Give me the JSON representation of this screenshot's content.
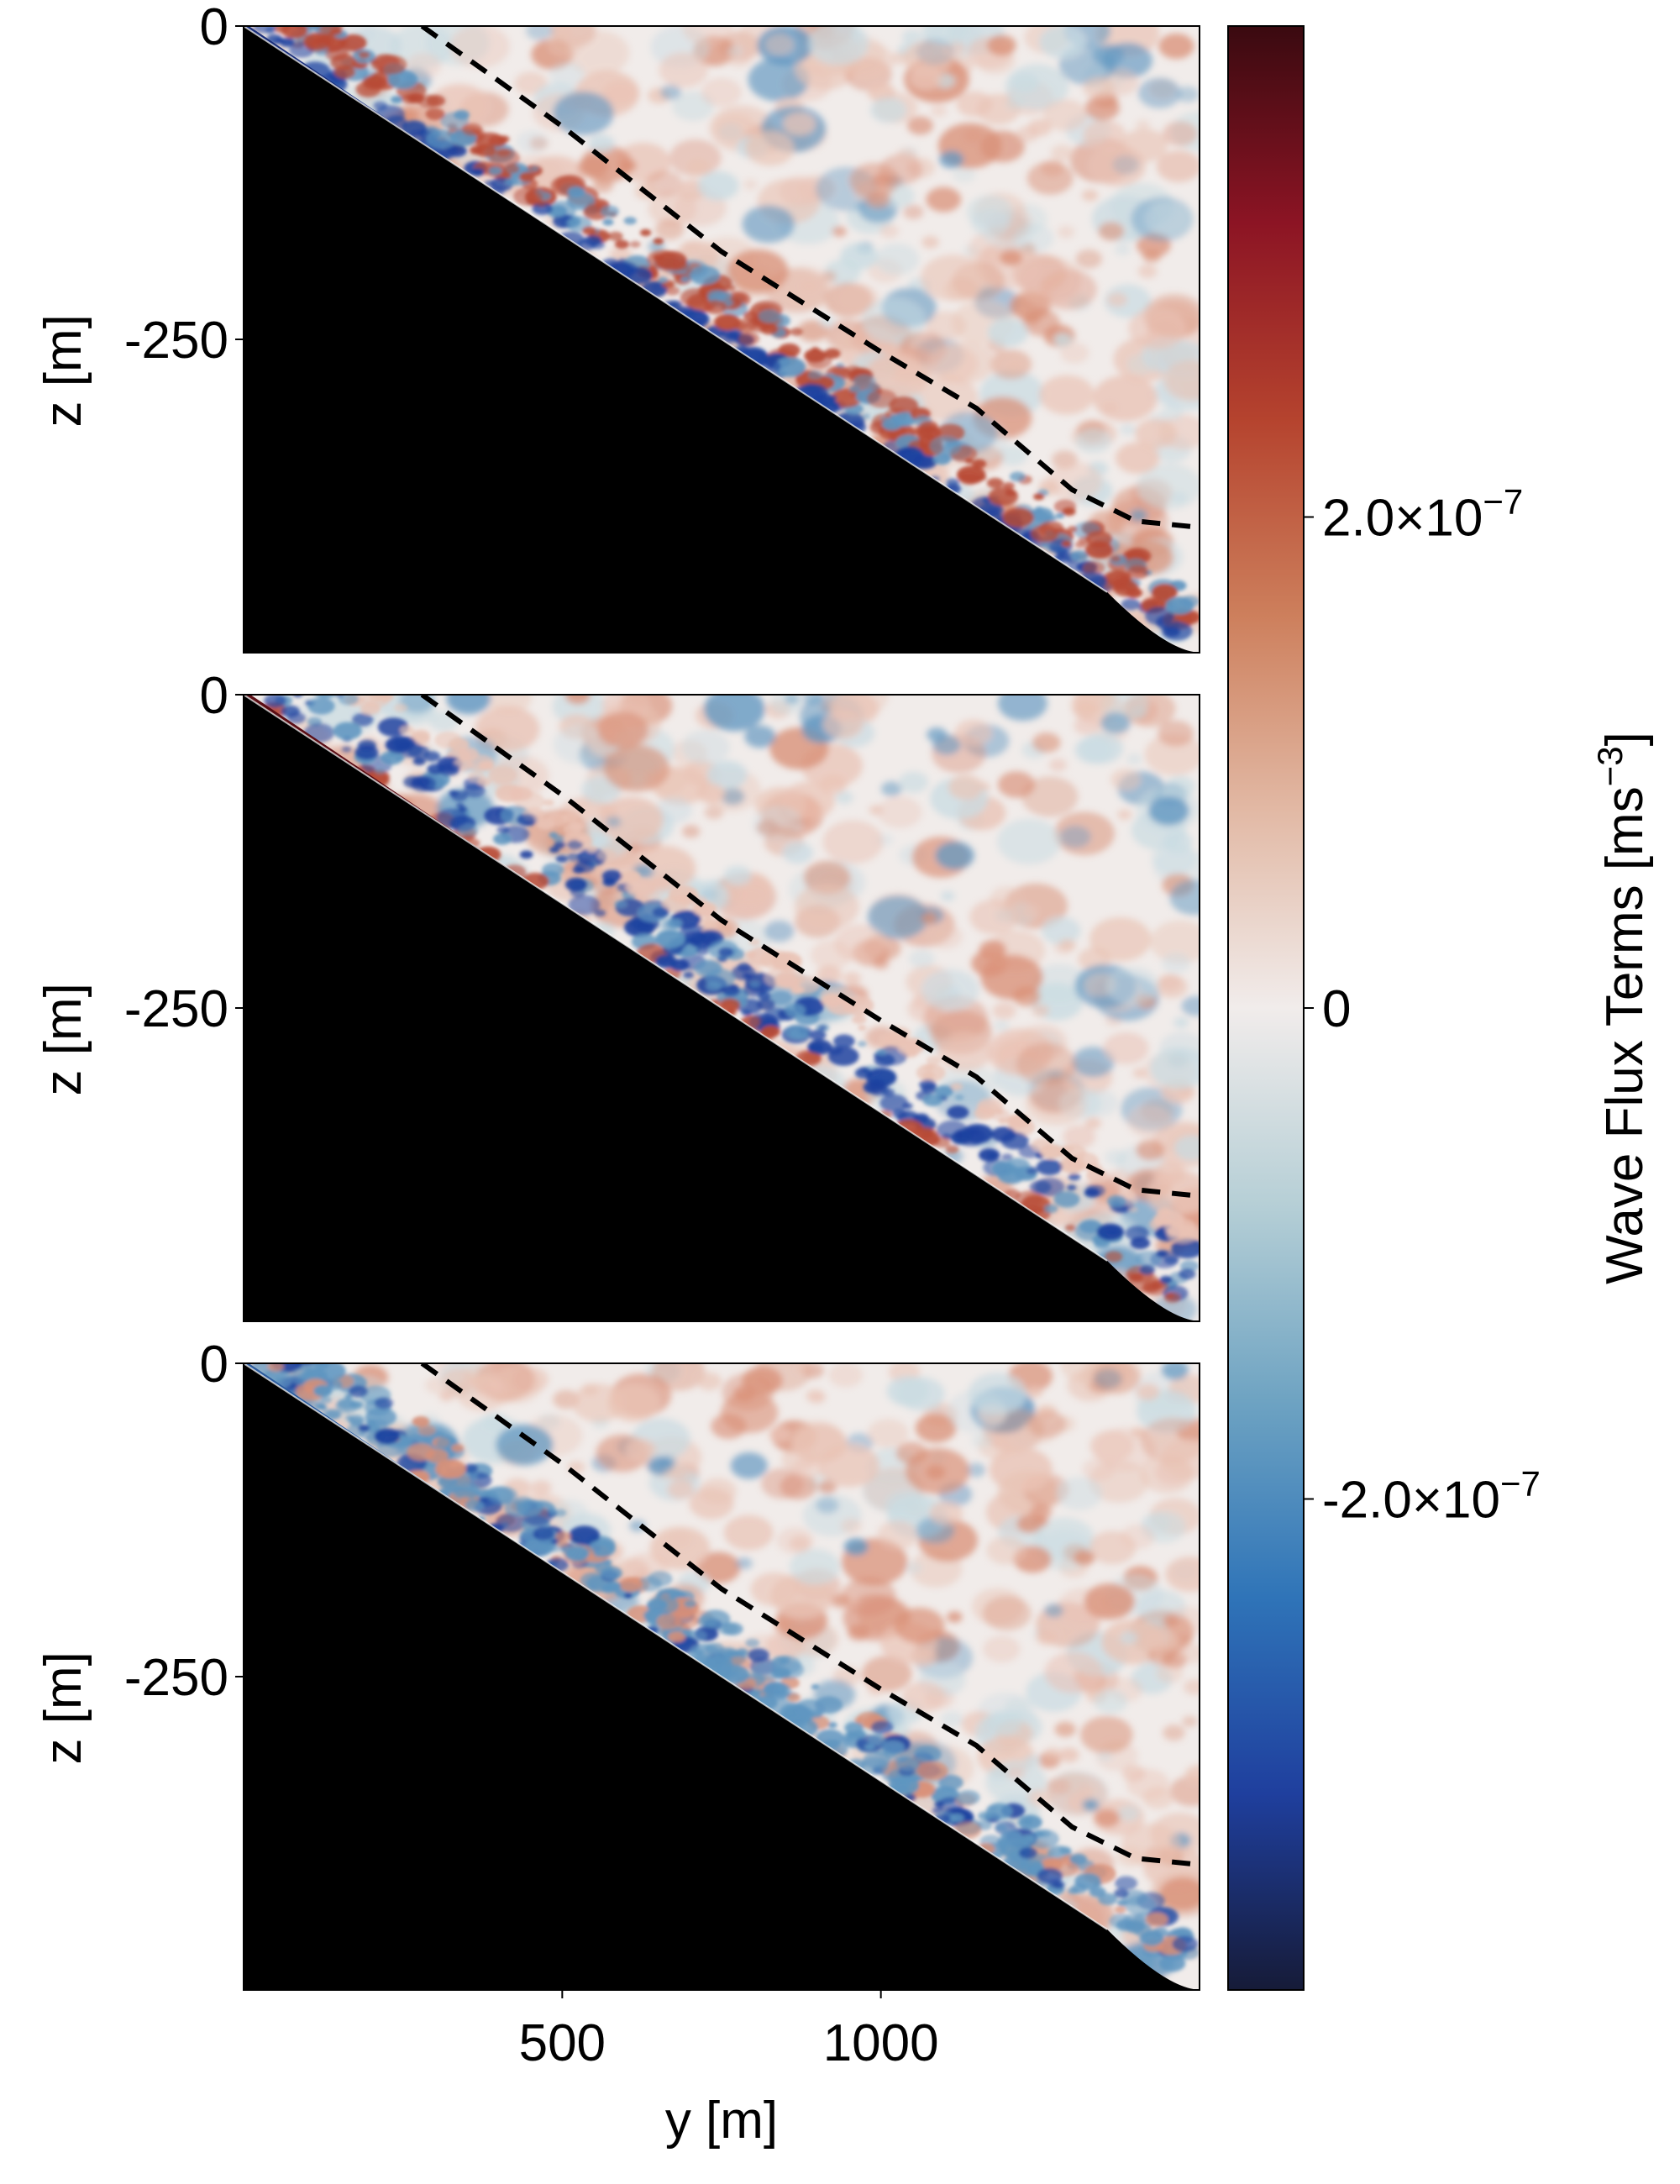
{
  "chart_data": {
    "type": "heatmap",
    "panels": [
      {
        "id": "top",
        "xlim": [
          0,
          1500
        ],
        "ylim": [
          -500,
          0
        ],
        "yticks": [
          0,
          -250
        ],
        "ytick_labels": [
          "0",
          "-250"
        ],
        "ylabel": "z [m]",
        "slope_depth_at_end": -500,
        "dashed_contour": [
          [
            280,
            0
          ],
          [
            500,
            -80
          ],
          [
            750,
            -180
          ],
          [
            1000,
            -260
          ],
          [
            1150,
            -305
          ],
          [
            1300,
            -370
          ],
          [
            1400,
            -395
          ],
          [
            1500,
            -400
          ]
        ]
      },
      {
        "id": "middle",
        "xlim": [
          0,
          1500
        ],
        "ylim": [
          -500,
          0
        ],
        "yticks": [
          0,
          -250
        ],
        "ytick_labels": [
          "0",
          "-250"
        ],
        "ylabel": "z [m]",
        "slope_depth_at_end": -500,
        "dashed_contour": [
          [
            280,
            0
          ],
          [
            500,
            -80
          ],
          [
            750,
            -180
          ],
          [
            1000,
            -260
          ],
          [
            1150,
            -305
          ],
          [
            1300,
            -370
          ],
          [
            1400,
            -395
          ],
          [
            1500,
            -400
          ]
        ]
      },
      {
        "id": "bottom",
        "xlim": [
          0,
          1500
        ],
        "ylim": [
          -500,
          0
        ],
        "yticks": [
          0,
          -250
        ],
        "ytick_labels": [
          "0",
          "-250"
        ],
        "ylabel": "z [m]",
        "xticks": [
          500,
          1000
        ],
        "xtick_labels": [
          "500",
          "1000"
        ],
        "xlabel": "y [m]",
        "slope_depth_at_end": -500,
        "dashed_contour": [
          [
            280,
            0
          ],
          [
            500,
            -80
          ],
          [
            750,
            -180
          ],
          [
            1000,
            -260
          ],
          [
            1150,
            -305
          ],
          [
            1300,
            -370
          ],
          [
            1400,
            -395
          ],
          [
            1500,
            -400
          ]
        ]
      }
    ],
    "colorbar": {
      "label": "Wave Flux Terms [ms",
      "label_sup": "−3",
      "label_close": "]",
      "range": [
        -4e-07,
        4e-07
      ],
      "ticks": [
        {
          "value": 2e-07,
          "mantissa": "2.0×10",
          "exponent": "−7"
        },
        {
          "value": 0,
          "mantissa": "0",
          "exponent": ""
        },
        {
          "value": -2e-07,
          "mantissa": "-2.0×10",
          "exponent": "−7"
        }
      ],
      "colormap": [
        "#161b38",
        "#1f3f9e",
        "#2f74b8",
        "#6ea3c2",
        "#b6cfd6",
        "#f1eceb",
        "#e2b9a5",
        "#cd7f5c",
        "#b5432e",
        "#8c1424",
        "#3a0a10"
      ]
    },
    "field_colors": {
      "background": "#f1ecea",
      "warm_light": "#e9c3b5",
      "warm": "#d98f76",
      "warm_strong": "#b84a35",
      "cool_light": "#c9dbe2",
      "cool": "#5e95c0",
      "cool_strong": "#1c42a0",
      "bathymetry": "#000000"
    }
  }
}
